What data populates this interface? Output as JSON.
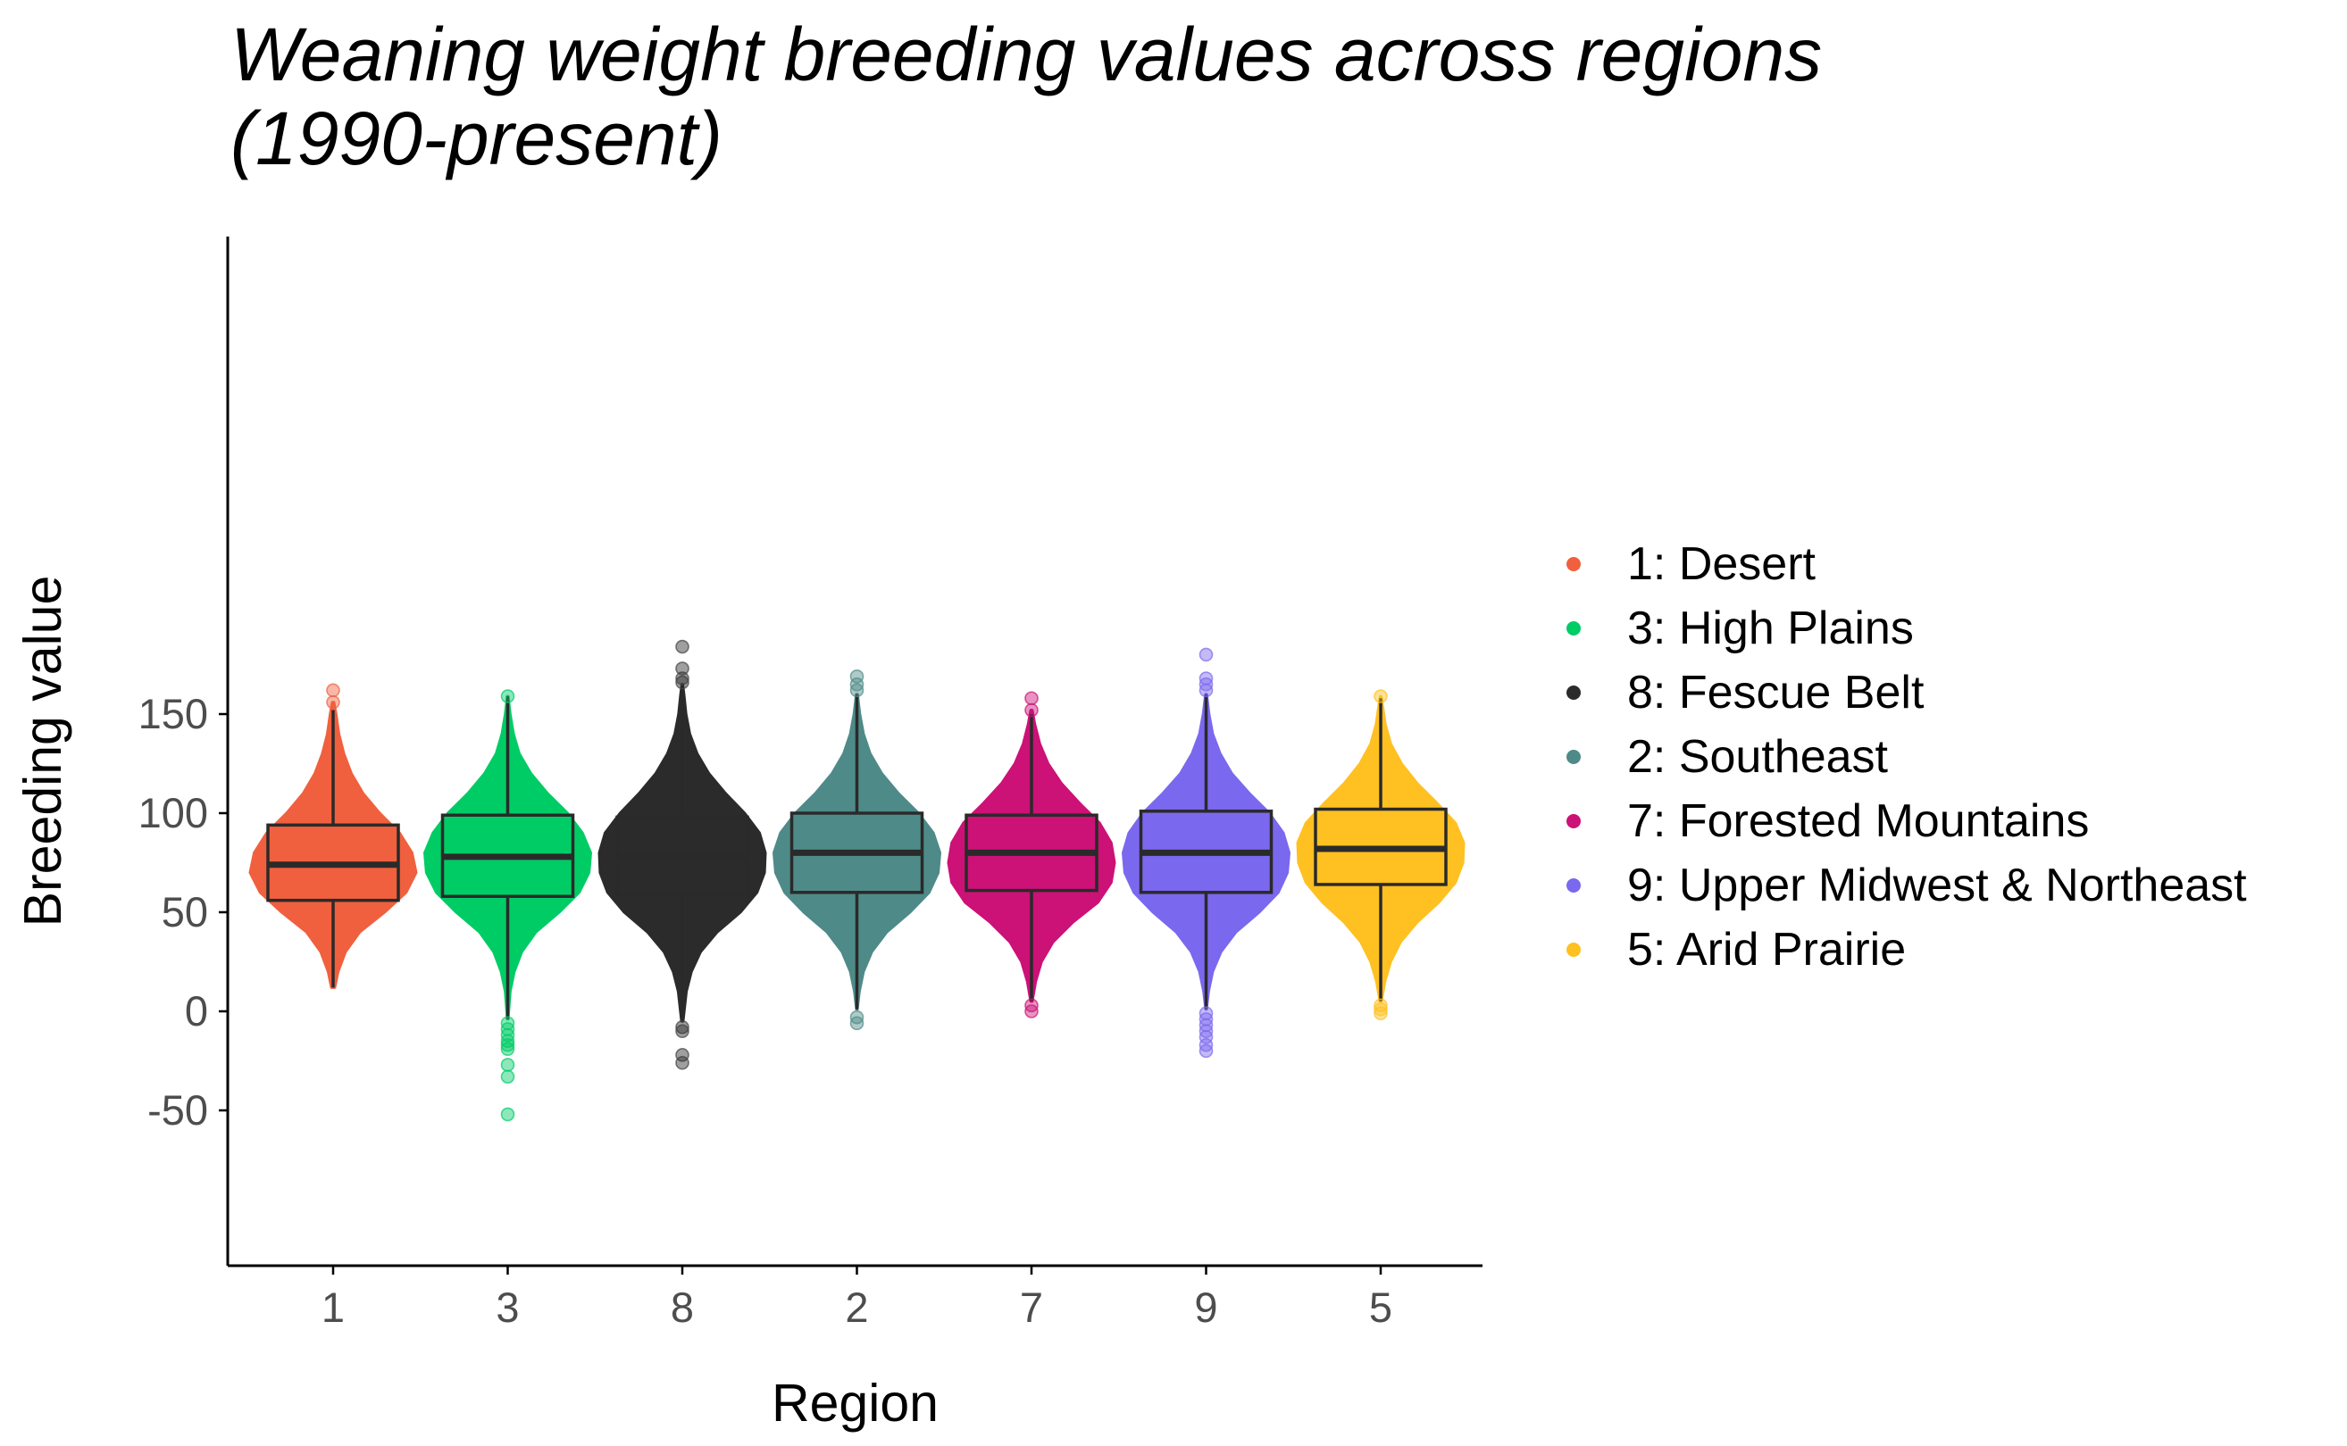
{
  "chart_data": {
    "type": "violin+box",
    "title_lines": [
      "Weaning weight breeding values across regions",
      "(1990-present)"
    ],
    "xlabel": "Region",
    "ylabel": "Breeding value",
    "ylim": [
      -63,
      195
    ],
    "yticks": [
      -50,
      0,
      50,
      100,
      150
    ],
    "grid": false,
    "legend_position": "right",
    "series": [
      {
        "category": "1",
        "legend": "1: Desert",
        "color": "#F0603E",
        "box": {
          "lower_whisker": 12,
          "q1": 56,
          "median": 74,
          "q3": 94,
          "upper_whisker": 152
        },
        "violin": {
          "min": 12,
          "max": 156,
          "halfwidths": [
            [
              12,
              0.02
            ],
            [
              20,
              0.06
            ],
            [
              30,
              0.15
            ],
            [
              40,
              0.32
            ],
            [
              50,
              0.62
            ],
            [
              60,
              0.88
            ],
            [
              70,
              1.0
            ],
            [
              80,
              0.95
            ],
            [
              90,
              0.8
            ],
            [
              100,
              0.56
            ],
            [
              110,
              0.36
            ],
            [
              120,
              0.22
            ],
            [
              130,
              0.13
            ],
            [
              140,
              0.07
            ],
            [
              150,
              0.035
            ],
            [
              156,
              0.01
            ]
          ]
        },
        "outliers": [
          162,
          156
        ]
      },
      {
        "category": "3",
        "legend": "3: High Plains",
        "color": "#00CC66",
        "box": {
          "lower_whisker": -4,
          "q1": 58,
          "median": 78,
          "q3": 99,
          "upper_whisker": 159
        },
        "violin": {
          "min": -4,
          "max": 159,
          "halfwidths": [
            [
              -4,
              0.005
            ],
            [
              10,
              0.03
            ],
            [
              20,
              0.08
            ],
            [
              30,
              0.17
            ],
            [
              40,
              0.34
            ],
            [
              50,
              0.62
            ],
            [
              60,
              0.86
            ],
            [
              70,
              0.98
            ],
            [
              80,
              1.0
            ],
            [
              90,
              0.9
            ],
            [
              100,
              0.72
            ],
            [
              110,
              0.48
            ],
            [
              120,
              0.28
            ],
            [
              130,
              0.14
            ],
            [
              140,
              0.07
            ],
            [
              150,
              0.03
            ],
            [
              159,
              0.005
            ]
          ]
        },
        "outliers": [
          -6,
          -9,
          -12,
          -15,
          -17,
          -19,
          -27,
          -33,
          -52,
          159
        ]
      },
      {
        "category": "8",
        "legend": "8: Fescue Belt",
        "color": "#2B2B2B",
        "box": {
          "lower_whisker": -5,
          "q1": 59,
          "median": 78,
          "q3": 98,
          "upper_whisker": 162
        },
        "violin": {
          "min": -5,
          "max": 165,
          "halfwidths": [
            [
              -5,
              0.01
            ],
            [
              10,
              0.05
            ],
            [
              20,
              0.11
            ],
            [
              30,
              0.22
            ],
            [
              40,
              0.42
            ],
            [
              50,
              0.7
            ],
            [
              60,
              0.9
            ],
            [
              70,
              0.99
            ],
            [
              80,
              1.0
            ],
            [
              90,
              0.93
            ],
            [
              100,
              0.75
            ],
            [
              110,
              0.52
            ],
            [
              120,
              0.32
            ],
            [
              130,
              0.18
            ],
            [
              140,
              0.09
            ],
            [
              150,
              0.045
            ],
            [
              160,
              0.02
            ],
            [
              165,
              0.005
            ]
          ]
        },
        "outliers": [
          -8,
          -10,
          -22,
          -26,
          166,
          168,
          173,
          184
        ]
      },
      {
        "category": "2",
        "legend": "2: Southeast",
        "color": "#4E8A88",
        "box": {
          "lower_whisker": 1,
          "q1": 60,
          "median": 80,
          "q3": 100,
          "upper_whisker": 160
        },
        "violin": {
          "min": 1,
          "max": 160,
          "halfwidths": [
            [
              1,
              0.005
            ],
            [
              10,
              0.03
            ],
            [
              20,
              0.08
            ],
            [
              30,
              0.18
            ],
            [
              40,
              0.36
            ],
            [
              50,
              0.64
            ],
            [
              60,
              0.87
            ],
            [
              70,
              0.98
            ],
            [
              80,
              1.0
            ],
            [
              90,
              0.92
            ],
            [
              100,
              0.74
            ],
            [
              110,
              0.5
            ],
            [
              120,
              0.3
            ],
            [
              130,
              0.16
            ],
            [
              140,
              0.08
            ],
            [
              150,
              0.035
            ],
            [
              160,
              0.008
            ]
          ]
        },
        "outliers": [
          -3,
          -6,
          162,
          165,
          169
        ]
      },
      {
        "category": "7",
        "legend": "7: Forested Mountains",
        "color": "#CC1177",
        "box": {
          "lower_whisker": 5,
          "q1": 61,
          "median": 80,
          "q3": 99,
          "upper_whisker": 150
        },
        "violin": {
          "min": 5,
          "max": 152,
          "halfwidths": [
            [
              5,
              0.01
            ],
            [
              15,
              0.05
            ],
            [
              25,
              0.12
            ],
            [
              35,
              0.26
            ],
            [
              45,
              0.5
            ],
            [
              55,
              0.8
            ],
            [
              65,
              0.96
            ],
            [
              75,
              1.0
            ],
            [
              85,
              0.96
            ],
            [
              95,
              0.82
            ],
            [
              105,
              0.58
            ],
            [
              115,
              0.36
            ],
            [
              125,
              0.2
            ],
            [
              135,
              0.1
            ],
            [
              145,
              0.04
            ],
            [
              152,
              0.01
            ]
          ]
        },
        "outliers": [
          0,
          3,
          152,
          158
        ]
      },
      {
        "category": "9",
        "legend": "9: Upper Midwest & Northeast",
        "color": "#7A68EE",
        "box": {
          "lower_whisker": 1,
          "q1": 60,
          "median": 80,
          "q3": 101,
          "upper_whisker": 160
        },
        "violin": {
          "min": 1,
          "max": 160,
          "halfwidths": [
            [
              1,
              0.005
            ],
            [
              10,
              0.03
            ],
            [
              20,
              0.08
            ],
            [
              30,
              0.18
            ],
            [
              40,
              0.36
            ],
            [
              50,
              0.64
            ],
            [
              60,
              0.87
            ],
            [
              70,
              0.98
            ],
            [
              80,
              1.0
            ],
            [
              90,
              0.93
            ],
            [
              100,
              0.76
            ],
            [
              110,
              0.52
            ],
            [
              120,
              0.31
            ],
            [
              130,
              0.17
            ],
            [
              140,
              0.08
            ],
            [
              150,
              0.035
            ],
            [
              160,
              0.008
            ]
          ]
        },
        "outliers": [
          -1,
          -4,
          -7,
          -10,
          -13,
          -17,
          -20,
          162,
          165,
          168,
          180
        ]
      },
      {
        "category": "5",
        "legend": "5: Arid Prairie",
        "color": "#FFC021",
        "box": {
          "lower_whisker": 5,
          "q1": 64,
          "median": 82,
          "q3": 102,
          "upper_whisker": 158
        },
        "violin": {
          "min": 5,
          "max": 159,
          "halfwidths": [
            [
              5,
              0.01
            ],
            [
              15,
              0.05
            ],
            [
              25,
              0.12
            ],
            [
              35,
              0.24
            ],
            [
              45,
              0.44
            ],
            [
              55,
              0.7
            ],
            [
              65,
              0.9
            ],
            [
              75,
              0.99
            ],
            [
              85,
              1.0
            ],
            [
              95,
              0.9
            ],
            [
              105,
              0.68
            ],
            [
              115,
              0.44
            ],
            [
              125,
              0.25
            ],
            [
              135,
              0.12
            ],
            [
              145,
              0.055
            ],
            [
              155,
              0.02
            ],
            [
              159,
              0.005
            ]
          ]
        },
        "outliers": [
          1,
          -1,
          3,
          159
        ]
      }
    ]
  }
}
